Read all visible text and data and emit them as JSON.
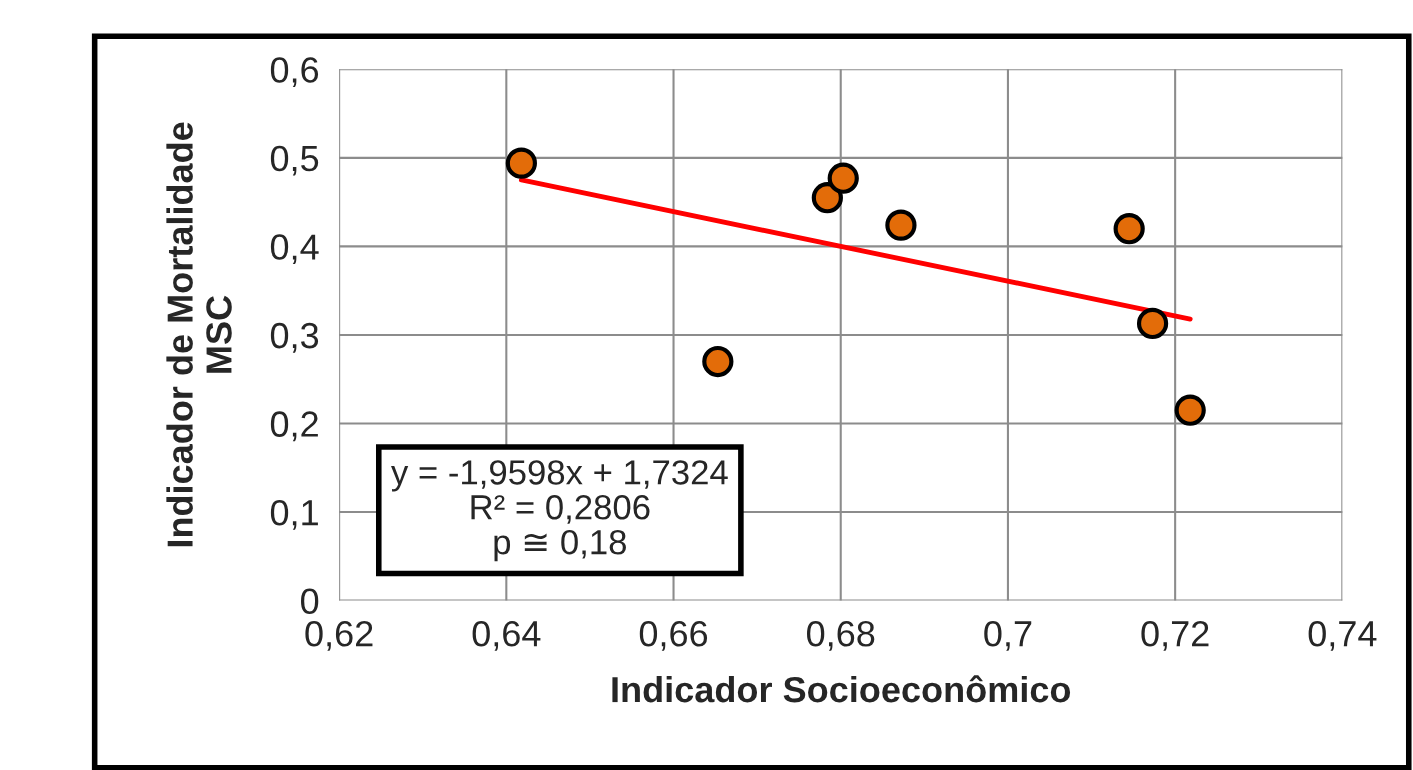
{
  "chart_data": {
    "type": "scatter",
    "xlabel": "Indicador Socioeconômico",
    "ylabel": "Indicador de Mortalidade\nMSC",
    "series": [
      {
        "color": "#e36c09",
        "marker": "circle",
        "x": [
          0.6418,
          0.6653,
          0.6784,
          0.6803,
          0.6872,
          0.7145,
          0.7173,
          0.7218
        ],
        "values": [
          0.494,
          0.27,
          0.455,
          0.477,
          0.424,
          0.42,
          0.313,
          0.215
        ]
      },
      {
        "type": "line",
        "color": "#ff0000",
        "marker": "none",
        "line_style": "solid",
        "x": [
          0.6418,
          0.7218
        ],
        "values": [
          0.475,
          0.318
        ]
      }
    ],
    "xlim": [
      0.62,
      0.74
    ],
    "xticks": [
      {
        "value": 0.62,
        "label": "0,62"
      },
      {
        "value": 0.64,
        "label": "0,64"
      },
      {
        "value": 0.66,
        "label": "0,66"
      },
      {
        "value": 0.68,
        "label": "0,68"
      },
      {
        "value": 0.7,
        "label": "0,7"
      },
      {
        "value": 0.72,
        "label": "0,72"
      },
      {
        "value": 0.74,
        "label": "0,74"
      }
    ],
    "ylim": [
      0,
      0.6
    ],
    "yticks": [
      {
        "value": 0,
        "label": "0"
      },
      {
        "value": 0.1,
        "label": "0,1"
      },
      {
        "value": 0.2,
        "label": "0,2"
      },
      {
        "value": 0.3,
        "label": "0,3"
      },
      {
        "value": 0.4,
        "label": "0,4"
      },
      {
        "value": 0.5,
        "label": "0,5"
      },
      {
        "value": 0.6,
        "label": "0,6"
      }
    ],
    "grid": true,
    "legend": false,
    "annotations": [
      "y = -1,9598x + 1,7324\nR² = 0,2806\np ≅ 0,18"
    ]
  }
}
